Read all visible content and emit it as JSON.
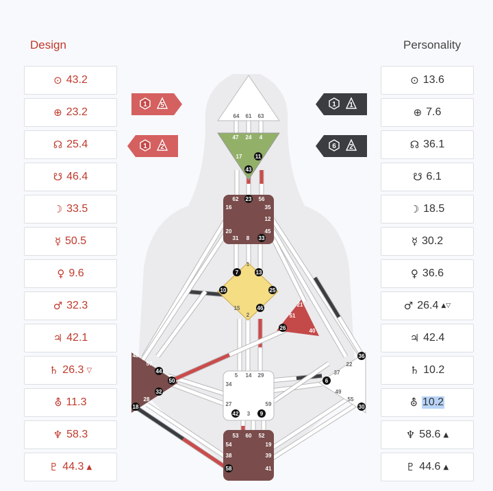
{
  "headers": {
    "design": "Design",
    "personality": "Personality"
  },
  "design": [
    {
      "glyph": "⊙",
      "value": "43.2",
      "mark": ""
    },
    {
      "glyph": "⊕",
      "value": "23.2",
      "mark": ""
    },
    {
      "glyph": "☊",
      "value": "25.4",
      "mark": ""
    },
    {
      "glyph": "☋",
      "value": "46.4",
      "mark": ""
    },
    {
      "glyph": "☽",
      "value": "33.5",
      "mark": ""
    },
    {
      "glyph": "☿",
      "value": "50.5",
      "mark": ""
    },
    {
      "glyph": "♀",
      "value": "9.6",
      "mark": ""
    },
    {
      "glyph": "♂",
      "value": "32.3",
      "mark": ""
    },
    {
      "glyph": "♃",
      "value": "42.1",
      "mark": ""
    },
    {
      "glyph": "♄",
      "value": "26.3",
      "mark": "▽"
    },
    {
      "glyph": "⛢",
      "value": "11.3",
      "mark": ""
    },
    {
      "glyph": "♆",
      "value": "58.3",
      "mark": ""
    },
    {
      "glyph": "♇",
      "value": "44.3",
      "mark": "▲"
    }
  ],
  "personality": [
    {
      "glyph": "⊙",
      "value": "13.6",
      "mark": ""
    },
    {
      "glyph": "⊕",
      "value": "7.6",
      "mark": ""
    },
    {
      "glyph": "☊",
      "value": "36.1",
      "mark": ""
    },
    {
      "glyph": "☋",
      "value": "6.1",
      "mark": ""
    },
    {
      "glyph": "☽",
      "value": "18.5",
      "mark": ""
    },
    {
      "glyph": "☿",
      "value": "30.2",
      "mark": ""
    },
    {
      "glyph": "♀",
      "value": "36.6",
      "mark": ""
    },
    {
      "glyph": "♂",
      "value": "26.4",
      "mark": "▲▽"
    },
    {
      "glyph": "♃",
      "value": "42.4",
      "mark": ""
    },
    {
      "glyph": "♄",
      "value": "10.2",
      "mark": ""
    },
    {
      "glyph": "⛢",
      "value": "10.2",
      "mark": "",
      "highlight": true
    },
    {
      "glyph": "♆",
      "value": "58.6",
      "mark": "▲"
    },
    {
      "glyph": "♇",
      "value": "44.6",
      "mark": "▲"
    }
  ],
  "arrows": {
    "design_top": [
      "1",
      "5"
    ],
    "design_bottom": [
      "1",
      "2"
    ],
    "personality_top": [
      "1",
      "1"
    ],
    "personality_bottom": [
      "6",
      "2"
    ]
  },
  "colors": {
    "design": "#cc4b4b",
    "personality": "#3b3d40",
    "head": "#ffffff",
    "ajna": "#93b069",
    "throat": "#7a4c4c",
    "g_center": "#f5dd84",
    "heart": "#c44949",
    "spleen": "#7a4c4c",
    "root": "#7a4c4c"
  },
  "centers": {
    "head": [
      "64",
      "61",
      "63"
    ],
    "ajna": [
      "47",
      "24",
      "4",
      "17",
      "11",
      "43"
    ],
    "throat": [
      "62",
      "23",
      "56",
      "16",
      "35",
      "12",
      "20",
      "31",
      "8",
      "33",
      "45"
    ],
    "g": [
      "1",
      "7",
      "13",
      "10",
      "25",
      "15",
      "46",
      "2"
    ],
    "heart": [
      "21",
      "51",
      "26",
      "40"
    ],
    "spleen": [
      "48",
      "57",
      "44",
      "50",
      "32",
      "28",
      "18"
    ],
    "sacral": [
      "5",
      "14",
      "29",
      "34",
      "27",
      "59",
      "42",
      "3",
      "9"
    ],
    "solar": [
      "36",
      "22",
      "37",
      "6",
      "49",
      "55",
      "30"
    ],
    "root": [
      "53",
      "60",
      "52",
      "54",
      "19",
      "38",
      "39",
      "58",
      "41"
    ]
  }
}
